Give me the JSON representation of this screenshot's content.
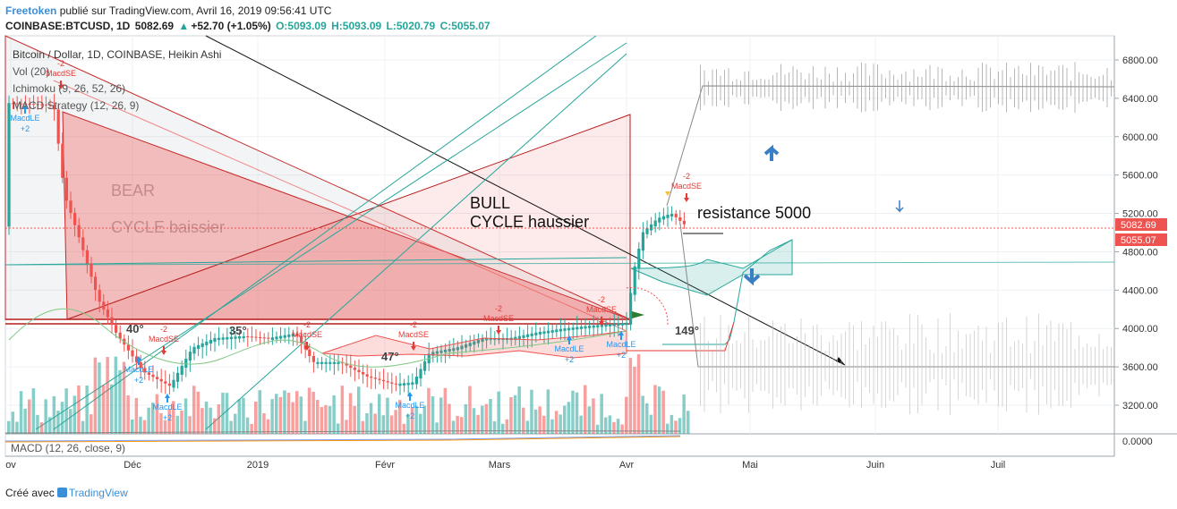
{
  "header": {
    "user": "Freetoken",
    "published": "publié sur TradingView.com, Avril 16, 2019 09:56:41 UTC",
    "symbol": "COINBASE:BTCUSD, 1D",
    "last": "5082.69",
    "change": "+52.70 (+1.05%)",
    "open": "O:5093.09",
    "high": "H:5093.09",
    "low": "L:5020.79",
    "close": "C:5055.07"
  },
  "legend": {
    "title": "Bitcoin / Dollar, 1D, COINBASE, Heikin Ashi",
    "vol": "Vol (20)",
    "ichimoku": "Ichimoku (9, 26, 52, 26)",
    "macd_strategy": "MACD Strategy (12, 26, 9)"
  },
  "macd_label": "MACD (12, 26, close, 9)",
  "footer": {
    "created": "Créé avec",
    "brand": "TradingView"
  },
  "colors": {
    "bull": "#26a69a",
    "bear": "#ef5350",
    "price_tag_bg": "#ef5350",
    "brand": "#3a8fd9"
  },
  "chart_data": {
    "type": "candlestick",
    "y_range": [
      2950,
      7050
    ],
    "y_ticks": [
      "6800.00",
      "6400.00",
      "6000.00",
      "5600.00",
      "5200.00",
      "4800.00",
      "4400.00",
      "4000.00",
      "3600.00",
      "3200.00"
    ],
    "macd_tick": "0.0000",
    "x_ticks": [
      "ov",
      "Déc",
      "2019",
      "Févr",
      "Mars",
      "Avr",
      "Mai",
      "Juin",
      "Juil"
    ],
    "price_tags": [
      "5082.69",
      "5055.07"
    ],
    "annotations": {
      "bear": "BEAR",
      "bear2": "CYCLE baissier",
      "bull": "BULL",
      "bull2": "CYCLE haussier",
      "resistance": "resistance 5000",
      "angle_40": "40°",
      "angle_35": "35°",
      "angle_47": "47°",
      "angle_149": "149°"
    },
    "signals": {
      "macd_le": "MacdLE",
      "macd_se": "MacdSE",
      "plus2": "+2",
      "minus2": "-2"
    },
    "projection_levels": {
      "top": 6500,
      "bottom": 3600
    }
  }
}
